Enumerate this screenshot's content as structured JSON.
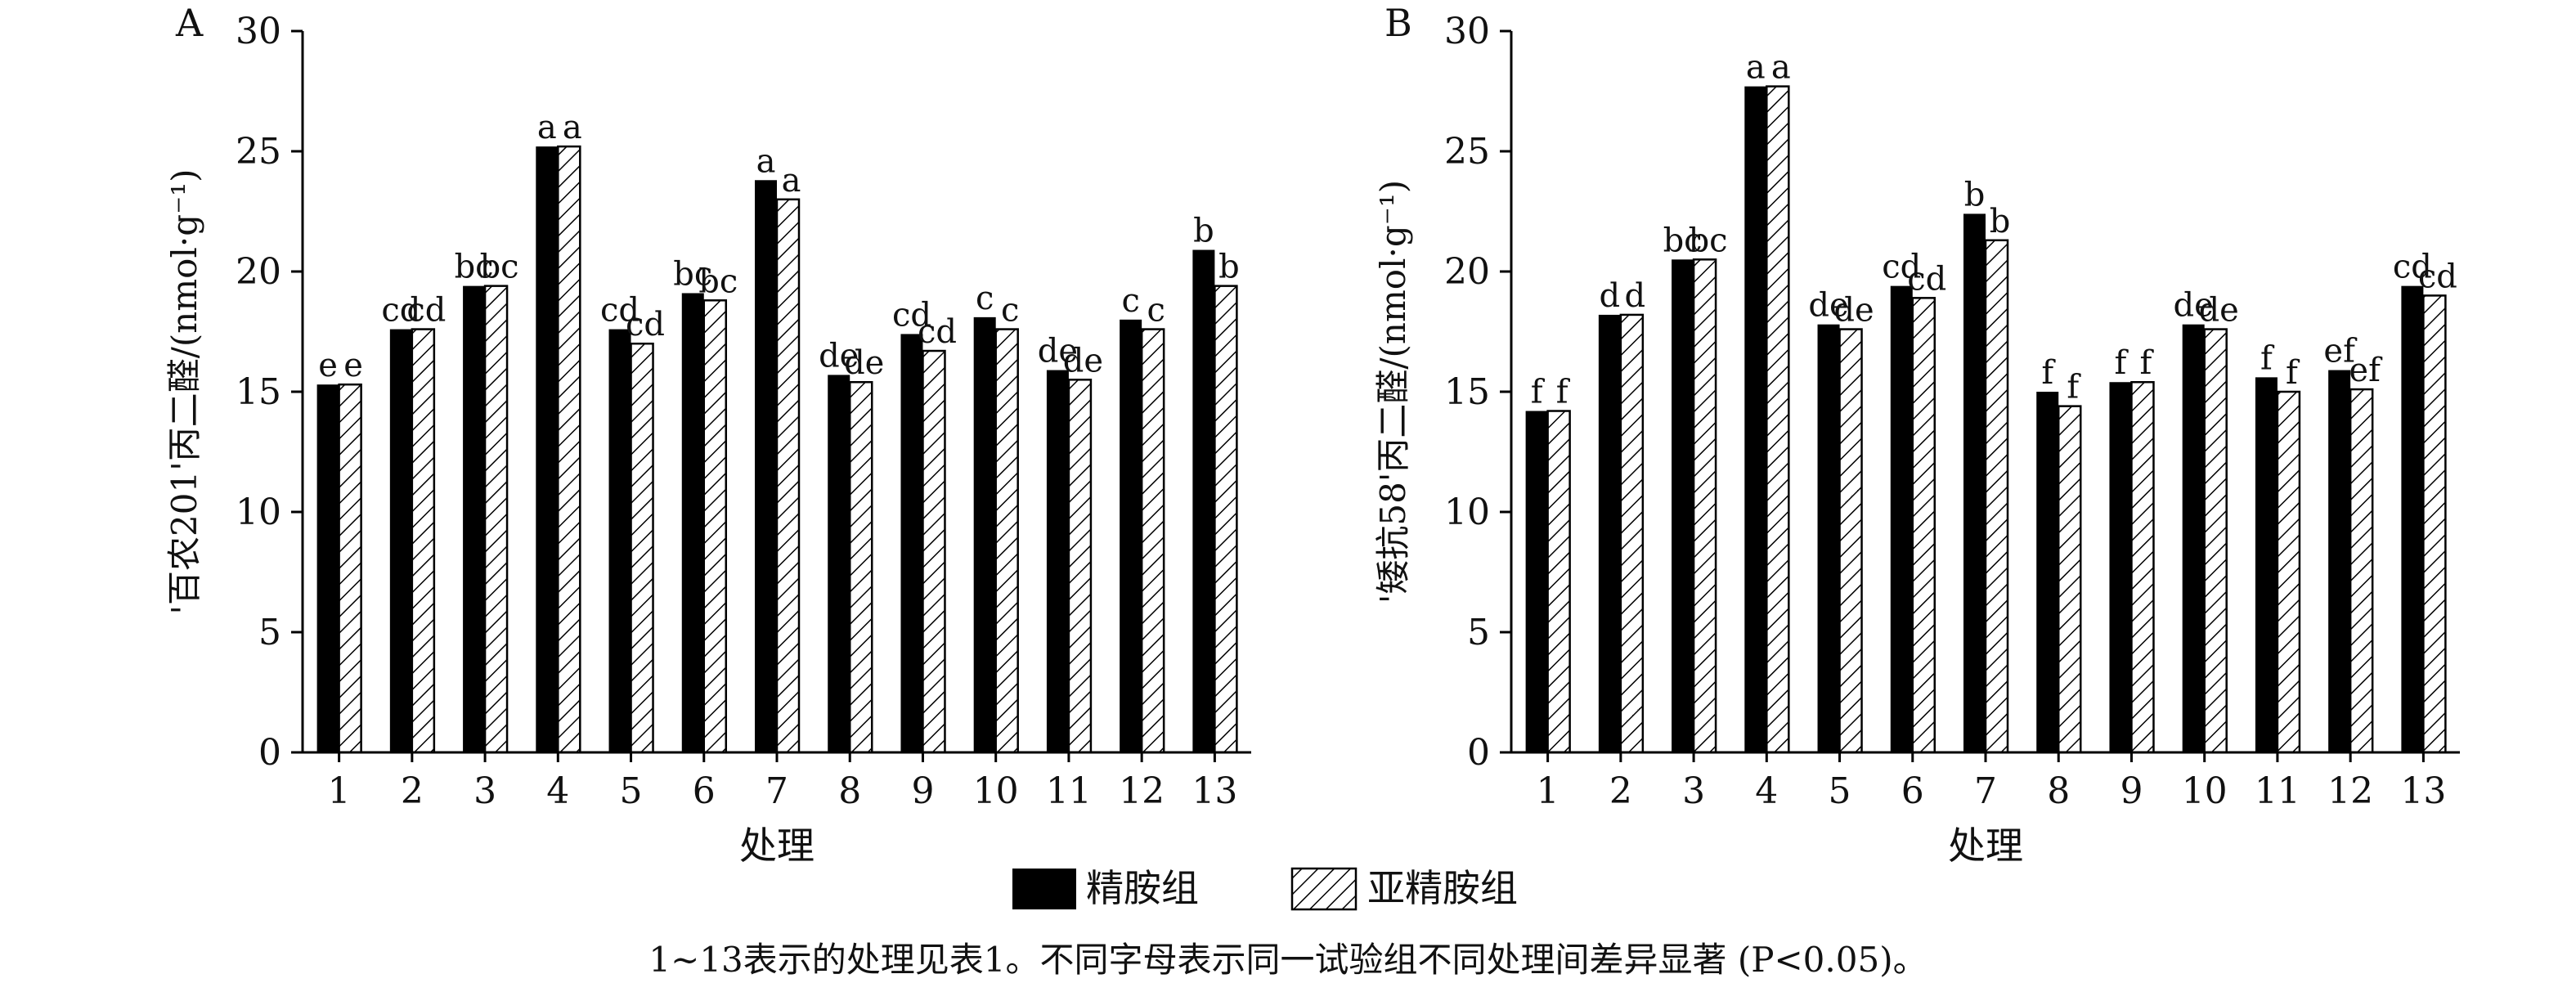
{
  "colors": {
    "primary": "#000000",
    "secondary_fill": "#ffffff",
    "hatch": "#000000",
    "text": "#111111"
  },
  "legend": {
    "series": [
      "精胺组",
      "亚精胺组"
    ],
    "placement": "bottom-center"
  },
  "caption": "1~13表示的处理见表1。不同字母表示同一试验组不同处理间差异显著 (P<0.05)。",
  "chart_data": [
    {
      "type": "bar",
      "panel_label": "A",
      "title": "",
      "xlabel": "处理",
      "ylabel": "'百农201'丙二醛/(nmol·g⁻¹)",
      "ylim": [
        0,
        30
      ],
      "yticks": [
        0,
        5,
        10,
        15,
        20,
        25,
        30
      ],
      "categories": [
        "1",
        "2",
        "3",
        "4",
        "5",
        "6",
        "7",
        "8",
        "9",
        "10",
        "11",
        "12",
        "13"
      ],
      "series": [
        {
          "name": "精胺组",
          "values": [
            15.3,
            17.6,
            19.4,
            25.2,
            17.6,
            19.1,
            23.8,
            15.7,
            17.4,
            18.1,
            15.9,
            18.0,
            20.9
          ],
          "labels": [
            "e",
            "cd",
            "bc",
            "a",
            "cd",
            "bc",
            "a",
            "de",
            "cd",
            "c",
            "de",
            "c",
            "b"
          ]
        },
        {
          "name": "亚精胺组",
          "values": [
            15.3,
            17.6,
            19.4,
            25.2,
            17.0,
            18.8,
            23.0,
            15.4,
            16.7,
            17.6,
            15.5,
            17.6,
            19.4
          ],
          "labels": [
            "e",
            "cd",
            "bc",
            "a",
            "cd",
            "bc",
            "a",
            "de",
            "cd",
            "c",
            "de",
            "c",
            "b"
          ]
        }
      ]
    },
    {
      "type": "bar",
      "panel_label": "B",
      "title": "",
      "xlabel": "处理",
      "ylabel": "'矮抗58'丙二醛/(nmol·g⁻¹)",
      "ylim": [
        0,
        30
      ],
      "yticks": [
        0,
        5,
        10,
        15,
        20,
        25,
        30
      ],
      "categories": [
        "1",
        "2",
        "3",
        "4",
        "5",
        "6",
        "7",
        "8",
        "9",
        "10",
        "11",
        "12",
        "13"
      ],
      "series": [
        {
          "name": "精胺组",
          "values": [
            14.2,
            18.2,
            20.5,
            27.7,
            17.8,
            19.4,
            22.4,
            15.0,
            15.4,
            17.8,
            15.6,
            15.9,
            19.4
          ],
          "labels": [
            "f",
            "d",
            "bc",
            "a",
            "de",
            "cd",
            "b",
            "f",
            "f",
            "de",
            "f",
            "ef",
            "cd"
          ]
        },
        {
          "name": "亚精胺组",
          "values": [
            14.2,
            18.2,
            20.5,
            27.7,
            17.6,
            18.9,
            21.3,
            14.4,
            15.4,
            17.6,
            15.0,
            15.1,
            19.0
          ],
          "labels": [
            "f",
            "d",
            "bc",
            "a",
            "de",
            "cd",
            "b",
            "f",
            "f",
            "de",
            "f",
            "ef",
            "cd"
          ]
        }
      ]
    }
  ]
}
